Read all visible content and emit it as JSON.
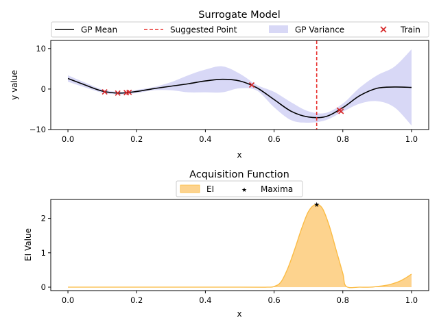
{
  "chart_data": [
    {
      "type": "line",
      "title": "Surrogate Model",
      "xlabel": "x",
      "ylabel": "y value",
      "xlim": [
        -0.05,
        1.05
      ],
      "ylim": [
        -10,
        12
      ],
      "xticks": [
        "0.0",
        "0.2",
        "0.4",
        "0.6",
        "0.8",
        "1.0"
      ],
      "yticks": [
        "10",
        "0",
        "−10"
      ],
      "legend": {
        "placement": "top",
        "entries": [
          "GP Mean",
          "Suggested Point",
          "GP Variance",
          "Train"
        ]
      },
      "colors": {
        "mean": "#000000",
        "suggested": "#e8312f",
        "variance": "#d8d8f6",
        "train": "#d62728"
      },
      "series": [
        {
          "name": "GP Mean",
          "x": [
            0.0,
            0.05,
            0.1,
            0.15,
            0.2,
            0.25,
            0.3,
            0.35,
            0.4,
            0.45,
            0.5,
            0.55,
            0.6,
            0.65,
            0.7,
            0.75,
            0.8,
            0.85,
            0.9,
            0.95,
            1.0
          ],
          "values": [
            2.6,
            1.0,
            -0.5,
            -1.0,
            -0.6,
            0.1,
            0.7,
            1.3,
            2.0,
            2.4,
            2.0,
            0.3,
            -2.6,
            -5.5,
            -6.9,
            -6.8,
            -4.6,
            -1.6,
            0.2,
            0.5,
            0.4
          ]
        },
        {
          "name": "GP Variance",
          "x": [
            0.0,
            0.05,
            0.1,
            0.15,
            0.2,
            0.25,
            0.3,
            0.35,
            0.4,
            0.45,
            0.5,
            0.55,
            0.6,
            0.65,
            0.7,
            0.75,
            0.8,
            0.85,
            0.9,
            0.95,
            1.0
          ],
          "lower": [
            1.8,
            0.4,
            -0.9,
            -1.3,
            -1.0,
            -0.3,
            -0.3,
            -0.8,
            -0.8,
            -0.8,
            0.2,
            -0.4,
            -4.5,
            -7.7,
            -8.3,
            -7.7,
            -5.6,
            -3.6,
            -3.0,
            -4.5,
            -9.0
          ],
          "upper": [
            3.4,
            1.6,
            -0.1,
            -0.7,
            -0.2,
            0.5,
            1.7,
            3.4,
            4.8,
            5.6,
            3.8,
            1.0,
            -0.7,
            -3.3,
            -5.5,
            -5.9,
            -3.6,
            0.4,
            3.4,
            5.5,
            9.8
          ]
        },
        {
          "name": "Train",
          "type": "scatter",
          "x": [
            0.107,
            0.145,
            0.17,
            0.178,
            0.535,
            0.79,
            0.795
          ],
          "values": [
            -0.7,
            -1.0,
            -0.9,
            -0.8,
            1.0,
            -5.2,
            -5.5
          ]
        }
      ],
      "suggested_point_x": 0.724
    },
    {
      "type": "area",
      "title": "Acquisition Function",
      "xlabel": "x",
      "ylabel": "EI Value",
      "xlim": [
        -0.05,
        1.05
      ],
      "ylim": [
        -0.1,
        2.55
      ],
      "xticks": [
        "0.0",
        "0.2",
        "0.4",
        "0.6",
        "0.8",
        "1.0"
      ],
      "yticks": [
        "2",
        "1",
        "0"
      ],
      "legend": {
        "placement": "top",
        "entries": [
          "EI",
          "Maxima"
        ]
      },
      "colors": {
        "ei_fill": "#fdd38e",
        "ei_line": "#fbbc45",
        "maxima": "#e31a1c"
      },
      "series": [
        {
          "name": "EI",
          "x": [
            0.0,
            0.5,
            0.58,
            0.6,
            0.62,
            0.64,
            0.66,
            0.68,
            0.7,
            0.72,
            0.74,
            0.76,
            0.78,
            0.8,
            0.81,
            0.85,
            0.88,
            0.9,
            0.93,
            0.96,
            0.98,
            1.0
          ],
          "values": [
            0.0,
            0.0,
            0.0,
            0.02,
            0.15,
            0.55,
            1.1,
            1.7,
            2.2,
            2.4,
            2.3,
            1.8,
            1.1,
            0.4,
            0.02,
            0.0,
            0.0,
            0.02,
            0.06,
            0.15,
            0.25,
            0.38
          ]
        },
        {
          "name": "Maxima",
          "type": "scatter",
          "x": [
            0.724
          ],
          "values": [
            2.4
          ]
        }
      ]
    }
  ]
}
